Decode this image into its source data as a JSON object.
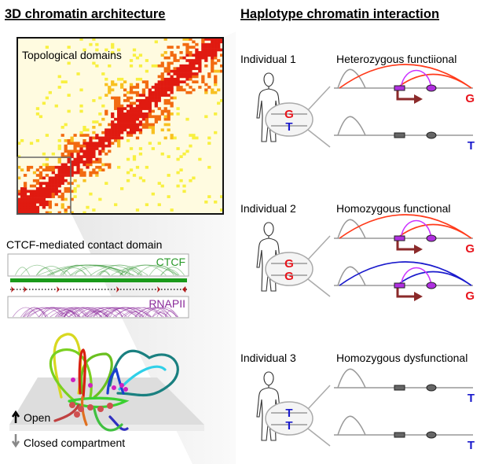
{
  "left": {
    "title": "3D chromatin architecture",
    "heatmap_label": "Topological domains",
    "contact_domain_title": "CTCF-mediated contact domain",
    "ctcf_label": "CTCF",
    "rnapii_label": "RNAPII",
    "open_label": "Open",
    "closed_label": "Closed compartment"
  },
  "right": {
    "title": "Haplotype chromatin interaction",
    "individuals": [
      {
        "name": "Individual 1",
        "status": "Heterozygous functiional",
        "alleles": [
          "G",
          "T"
        ],
        "track_alleles": [
          "G",
          "T"
        ]
      },
      {
        "name": "Individual 2",
        "status": "Homozygous functional",
        "alleles": [
          "G",
          "G"
        ],
        "track_alleles": [
          "G",
          "G"
        ]
      },
      {
        "name": "Individual 3",
        "status": "Homozygous dysfunctional",
        "alleles": [
          "T",
          "T"
        ],
        "track_alleles": [
          "T",
          "T"
        ]
      }
    ]
  },
  "colors": {
    "allele_G": "#e8141c",
    "allele_T": "#1a1acc",
    "ctcf": "#2a9a2a",
    "rnapii": "#8a2a9a",
    "arc_G": "#ff3a1a",
    "arc_G2": "#1a1acc",
    "loop": "#cc33ff",
    "promoter_arrow": "#8b2a2a"
  }
}
